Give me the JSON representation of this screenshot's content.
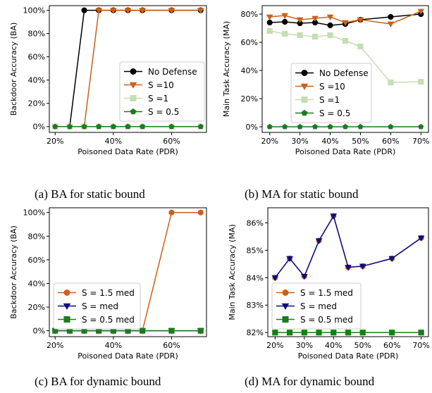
{
  "chart_data": [
    {
      "type": "line",
      "caption": "(a) BA for static bound",
      "xlabel": "Poisoned Data Rate (PDR)",
      "ylabel": "Backdoor Accuracy (BA)",
      "xlim": [
        18,
        72
      ],
      "ylim": [
        -5,
        104
      ],
      "xticks": [
        20,
        40,
        60
      ],
      "xtick_labels": [
        "20%",
        "40%",
        "60%"
      ],
      "yticks": [
        0,
        20,
        40,
        60,
        80,
        100
      ],
      "ytick_labels": [
        "0%",
        "20%",
        "40%",
        "60%",
        "80%",
        "100%"
      ],
      "legend": "center-right",
      "series": [
        {
          "name": "No Defense",
          "color": "#000000",
          "marker": "circle",
          "x": [
            20,
            25,
            30,
            35,
            40,
            45,
            50,
            60,
            70
          ],
          "values": [
            0,
            0,
            100,
            100,
            100,
            100,
            100,
            100,
            100
          ]
        },
        {
          "name": "S =10",
          "color": "#c8621b",
          "marker": "triangle-down",
          "x": [
            20,
            25,
            30,
            35,
            40,
            45,
            50,
            60,
            70
          ],
          "values": [
            0,
            0,
            0,
            100,
            100,
            100,
            100,
            100,
            100
          ]
        },
        {
          "name": "S =1",
          "color": "#c4deb3",
          "marker": "square",
          "x": [
            20,
            25,
            30,
            35,
            40,
            45,
            50,
            60,
            70
          ],
          "values": [
            0,
            0,
            0,
            0,
            0,
            0,
            0,
            0,
            0
          ]
        },
        {
          "name": "S = 0.5",
          "color": "#1e7a1e",
          "marker": "pentagon",
          "x": [
            20,
            25,
            30,
            35,
            40,
            45,
            50,
            60,
            70
          ],
          "values": [
            0,
            0,
            0,
            0,
            0,
            0,
            0,
            0,
            0
          ]
        }
      ]
    },
    {
      "type": "line",
      "caption": "(b) MA for static bound",
      "xlabel": "Poisoned Data Rate (PDR)",
      "ylabel": "Main Task Accuracy (MA)",
      "xlim": [
        17.5,
        72.5
      ],
      "ylim": [
        -4,
        86
      ],
      "xticks": [
        20,
        30,
        40,
        50,
        60,
        70
      ],
      "xtick_labels": [
        "20%",
        "30%",
        "40%",
        "50%",
        "60%",
        "70%"
      ],
      "yticks": [
        0,
        20,
        40,
        60,
        80
      ],
      "ytick_labels": [
        "0%",
        "20%",
        "40%",
        "60%",
        "80%"
      ],
      "legend": "lower-left",
      "series": [
        {
          "name": "No Defense",
          "color": "#000000",
          "marker": "circle",
          "x": [
            20,
            25,
            30,
            35,
            40,
            45,
            50,
            60,
            70
          ],
          "values": [
            74,
            74.5,
            73.5,
            74,
            72,
            73,
            76,
            78,
            80
          ]
        },
        {
          "name": "S =10",
          "color": "#c8621b",
          "marker": "triangle-down",
          "x": [
            20,
            25,
            30,
            35,
            40,
            45,
            50,
            60,
            70
          ],
          "values": [
            78,
            79,
            76,
            77,
            78,
            74,
            76,
            73,
            82
          ]
        },
        {
          "name": "S =1",
          "color": "#c4deb3",
          "marker": "square",
          "x": [
            20,
            25,
            30,
            35,
            40,
            45,
            50,
            60,
            70
          ],
          "values": [
            68,
            66,
            65,
            64,
            65,
            61,
            57,
            31.5,
            32
          ]
        },
        {
          "name": "S = 0.5",
          "color": "#1e7a1e",
          "marker": "pentagon",
          "x": [
            20,
            25,
            30,
            35,
            40,
            45,
            50,
            60,
            70
          ],
          "values": [
            0,
            0,
            0,
            0,
            0,
            0,
            0,
            0,
            0
          ]
        }
      ]
    },
    {
      "type": "line",
      "caption": "(c) BA for dynamic bound",
      "xlabel": "Poisoned Data Rate (PDR)",
      "ylabel": "Backdoor Accuracy (BA)",
      "xlim": [
        18,
        72
      ],
      "ylim": [
        -5,
        104
      ],
      "xticks": [
        20,
        40,
        60
      ],
      "xtick_labels": [
        "20%",
        "40%",
        "60%"
      ],
      "yticks": [
        0,
        20,
        40,
        60,
        80,
        100
      ],
      "ytick_labels": [
        "0%",
        "20%",
        "40%",
        "60%",
        "80%",
        "100%"
      ],
      "legend": "lower-left",
      "series": [
        {
          "name": "S = 1.5 med",
          "color": "#c8621b",
          "marker": "circle",
          "x": [
            20,
            25,
            30,
            35,
            40,
            45,
            50,
            60,
            70
          ],
          "values": [
            0,
            0,
            0,
            0,
            0,
            0,
            0,
            100,
            100
          ]
        },
        {
          "name": "S = med",
          "color": "#0b0b82",
          "marker": "triangle-down",
          "x": [
            20,
            25,
            30,
            35,
            40,
            45,
            50,
            60,
            70
          ],
          "values": [
            0,
            0,
            0,
            0,
            0,
            0,
            0,
            0,
            0
          ]
        },
        {
          "name": "S = 0.5 med",
          "color": "#1e7a1e",
          "marker": "square",
          "x": [
            20,
            25,
            30,
            35,
            40,
            45,
            50,
            60,
            70
          ],
          "values": [
            0,
            0,
            0,
            0,
            0,
            0,
            0,
            0,
            0
          ]
        }
      ]
    },
    {
      "type": "line",
      "caption": "(d) MA for dynamic bound",
      "xlabel": "Poisoned Data Rate (PDR)",
      "ylabel": "Main Task Accuracy (MA)",
      "xlim": [
        17.5,
        72.5
      ],
      "ylim": [
        81.85,
        86.55
      ],
      "xticks": [
        20,
        30,
        40,
        50,
        60,
        70
      ],
      "xtick_labels": [
        "20%",
        "30%",
        "40%",
        "50%",
        "60%",
        "70%"
      ],
      "yticks": [
        82,
        83,
        84,
        85,
        86
      ],
      "ytick_labels": [
        "82%",
        "83%",
        "84%",
        "85%",
        "86%"
      ],
      "legend": "lower-left",
      "series": [
        {
          "name": "S = 1.5 med",
          "color": "#c8621b",
          "marker": "circle",
          "x": [
            20,
            25,
            30,
            35,
            40,
            45,
            50,
            60,
            70
          ],
          "values": [
            84,
            84.7,
            84.05,
            85.35,
            86.25,
            84.38,
            84.42,
            84.7,
            85.45
          ]
        },
        {
          "name": "S = med",
          "color": "#0b0b82",
          "marker": "triangle-down",
          "x": [
            20,
            25,
            30,
            35,
            40,
            45,
            50,
            60,
            70
          ],
          "values": [
            84,
            84.7,
            84.05,
            85.35,
            86.25,
            84.38,
            84.42,
            84.7,
            85.45
          ]
        },
        {
          "name": "S = 0.5 med",
          "color": "#1e7a1e",
          "marker": "square",
          "x": [
            20,
            25,
            30,
            35,
            40,
            45,
            50,
            60,
            70
          ],
          "values": [
            82,
            82,
            82,
            82,
            82,
            82,
            82,
            82,
            82
          ]
        }
      ]
    }
  ]
}
